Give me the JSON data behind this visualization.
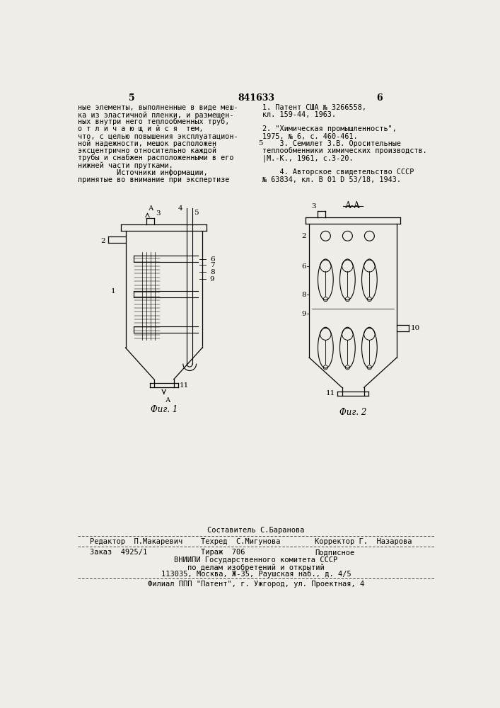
{
  "bg_color": "#f0ede8",
  "page_width": 7.07,
  "page_height": 10.0,
  "top_text_left": [
    "ные элементы, выполненные в виде меш-",
    "ка из эластичной пленки, и размещен-",
    "ных внутри него теплообменных труб,",
    "о т л и ч а ю щ и й с я  тем,",
    "что, с целью повышения эксплуатацион-",
    "ной надежности, мешок расположен",
    "эксцентрично относительно каждой",
    "трубы и снабжен расположенными в его",
    "нижней части прутками.",
    "         Источники информации,",
    "принятые во внимание при экспертизе"
  ],
  "top_text_right": [
    "1. Патент США № 3266558,",
    "кл. 159-44, 1963.",
    "",
    "2. \"Химическая промышленность\",",
    "1975, № 6, с. 460-461.",
    "    3. Семилет З.В. Оросительные",
    "теплообменники химических производств.",
    "|М.-К., 1961, с.3-20.",
    "",
    "    4. Авторское свидетельство СССР",
    "№ 63834, кл. В 01 D 53/18, 1943."
  ],
  "page_num_left": "5",
  "page_num_center": "841633",
  "page_num_right": "6",
  "bottom_editor": "Редактор  П.Макаревич",
  "bottom_sostavitel": "Составитель С.Баранова",
  "bottom_tehred": "Техред  С.Мигунова",
  "bottom_korrektor": "Корректор Г.  Назарова",
  "bottom_zakaz": "Заказ  4925/1",
  "bottom_tirazh": "Тираж  706",
  "bottom_podpisnoe": "Подписное",
  "bottom_vniip1": "ВНИИПИ Государственного комитета СССР",
  "bottom_vniip2": "по делам изобретений и открытий",
  "bottom_vniip3": "113035, Москва, Ж-35, Раушская наб., д. 4/5",
  "bottom_filial": "Филиал ППП \"Патент\", г. Ужгород, ул. Проектная, 4"
}
